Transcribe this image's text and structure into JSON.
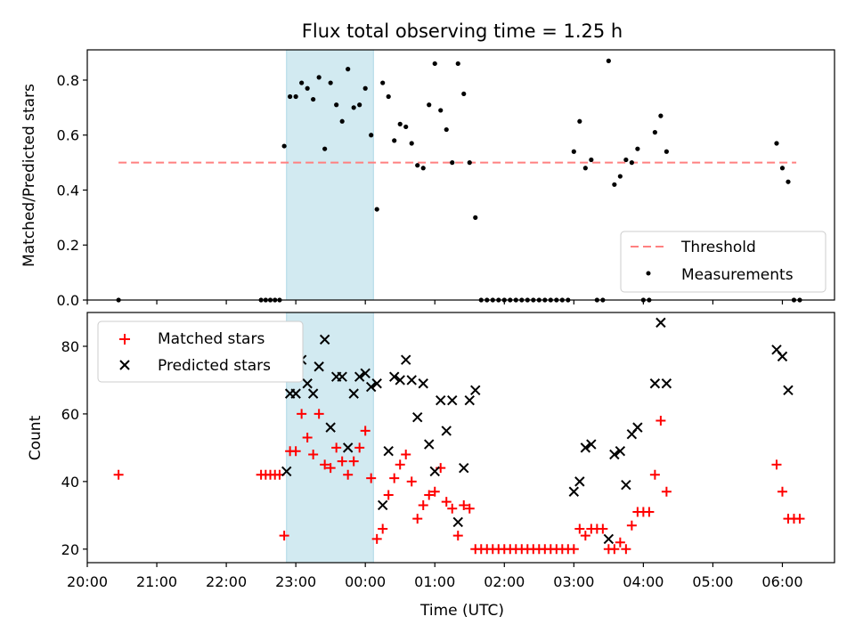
{
  "figure_title": "Flux total observing time = 1.25 h",
  "colors": {
    "threshold": "#ff8080",
    "measurements": "#000000",
    "matched": "#ff0000",
    "predicted": "#000000",
    "shade": "#add8e6"
  },
  "chart_data": [
    {
      "type": "scatter",
      "title": "Flux total observing time = 1.25 h",
      "xlabel": "",
      "ylabel": "Matched/Predicted stars",
      "x_axis": "time",
      "xlim": [
        "20:00",
        "06:45"
      ],
      "ylim": [
        0,
        0.91
      ],
      "yticks": [
        0.0,
        0.2,
        0.4,
        0.6,
        0.8
      ],
      "ytick_labels": [
        "0.0",
        "0.2",
        "0.4",
        "0.6",
        "0.8"
      ],
      "shaded_span": [
        "22:52",
        "00:07"
      ],
      "legend": {
        "position": "lower-right",
        "entries": [
          "Threshold",
          "Measurements"
        ]
      },
      "series": [
        {
          "name": "Threshold",
          "style": "dashed-line",
          "points": [
            [
              "20:27",
              0.5
            ],
            [
              "06:12",
              0.5
            ]
          ]
        },
        {
          "name": "Measurements",
          "style": "dot",
          "points": [
            [
              "20:27",
              0.0
            ],
            [
              "22:30",
              0.0
            ],
            [
              "22:34",
              0.0
            ],
            [
              "22:38",
              0.0
            ],
            [
              "22:42",
              0.0
            ],
            [
              "22:46",
              0.0
            ],
            [
              "22:50",
              0.56
            ],
            [
              "22:55",
              0.74
            ],
            [
              "23:00",
              0.74
            ],
            [
              "23:05",
              0.79
            ],
            [
              "23:10",
              0.77
            ],
            [
              "23:15",
              0.73
            ],
            [
              "23:20",
              0.81
            ],
            [
              "23:25",
              0.55
            ],
            [
              "23:30",
              0.79
            ],
            [
              "23:35",
              0.71
            ],
            [
              "23:40",
              0.65
            ],
            [
              "23:45",
              0.84
            ],
            [
              "23:50",
              0.7
            ],
            [
              "23:55",
              0.71
            ],
            [
              "00:00",
              0.77
            ],
            [
              "00:05",
              0.6
            ],
            [
              "00:10",
              0.33
            ],
            [
              "00:15",
              0.79
            ],
            [
              "00:20",
              0.74
            ],
            [
              "00:25",
              0.58
            ],
            [
              "00:30",
              0.64
            ],
            [
              "00:35",
              0.63
            ],
            [
              "00:40",
              0.57
            ],
            [
              "00:45",
              0.49
            ],
            [
              "00:50",
              0.48
            ],
            [
              "00:55",
              0.71
            ],
            [
              "01:00",
              0.86
            ],
            [
              "01:05",
              0.69
            ],
            [
              "01:10",
              0.62
            ],
            [
              "01:15",
              0.5
            ],
            [
              "01:20",
              0.86
            ],
            [
              "01:25",
              0.75
            ],
            [
              "01:30",
              0.5
            ],
            [
              "01:35",
              0.3
            ],
            [
              "01:40",
              0.0
            ],
            [
              "01:45",
              0.0
            ],
            [
              "01:50",
              0.0
            ],
            [
              "01:55",
              0.0
            ],
            [
              "02:00",
              0.0
            ],
            [
              "02:05",
              0.0
            ],
            [
              "02:10",
              0.0
            ],
            [
              "02:15",
              0.0
            ],
            [
              "02:20",
              0.0
            ],
            [
              "02:25",
              0.0
            ],
            [
              "02:30",
              0.0
            ],
            [
              "02:35",
              0.0
            ],
            [
              "02:40",
              0.0
            ],
            [
              "02:45",
              0.0
            ],
            [
              "02:50",
              0.0
            ],
            [
              "02:55",
              0.0
            ],
            [
              "03:00",
              0.54
            ],
            [
              "03:05",
              0.65
            ],
            [
              "03:10",
              0.48
            ],
            [
              "03:15",
              0.51
            ],
            [
              "03:20",
              0.0
            ],
            [
              "03:25",
              0.0
            ],
            [
              "03:30",
              0.87
            ],
            [
              "03:35",
              0.42
            ],
            [
              "03:40",
              0.45
            ],
            [
              "03:45",
              0.51
            ],
            [
              "03:50",
              0.5
            ],
            [
              "03:55",
              0.55
            ],
            [
              "04:00",
              0.0
            ],
            [
              "04:05",
              0.0
            ],
            [
              "04:10",
              0.61
            ],
            [
              "04:15",
              0.67
            ],
            [
              "04:20",
              0.54
            ],
            [
              "05:55",
              0.57
            ],
            [
              "06:00",
              0.48
            ],
            [
              "06:05",
              0.43
            ],
            [
              "06:10",
              0.0
            ],
            [
              "06:15",
              0.0
            ]
          ]
        }
      ]
    },
    {
      "type": "scatter",
      "title": "",
      "xlabel": "Time (UTC)",
      "ylabel": "Count",
      "x_axis": "time",
      "xlim": [
        "20:00",
        "06:45"
      ],
      "ylim": [
        16,
        90
      ],
      "yticks": [
        20,
        40,
        60,
        80
      ],
      "ytick_labels": [
        "20",
        "40",
        "60",
        "80"
      ],
      "xticks": [
        "20:00",
        "21:00",
        "22:00",
        "23:00",
        "00:00",
        "01:00",
        "02:00",
        "03:00",
        "04:00",
        "05:00",
        "06:00"
      ],
      "shaded_span": [
        "22:52",
        "00:07"
      ],
      "legend": {
        "position": "upper-left",
        "entries": [
          "Matched stars",
          "Predicted stars"
        ]
      },
      "series": [
        {
          "name": "Matched stars",
          "style": "plus",
          "points": [
            [
              "20:27",
              42
            ],
            [
              "22:30",
              42
            ],
            [
              "22:34",
              42
            ],
            [
              "22:38",
              42
            ],
            [
              "22:42",
              42
            ],
            [
              "22:46",
              42
            ],
            [
              "22:50",
              24
            ],
            [
              "22:55",
              49
            ],
            [
              "23:00",
              49
            ],
            [
              "23:05",
              60
            ],
            [
              "23:10",
              53
            ],
            [
              "23:15",
              48
            ],
            [
              "23:20",
              60
            ],
            [
              "23:25",
              45
            ],
            [
              "23:30",
              44
            ],
            [
              "23:35",
              50
            ],
            [
              "23:40",
              46
            ],
            [
              "23:45",
              42
            ],
            [
              "23:50",
              46
            ],
            [
              "23:55",
              50
            ],
            [
              "00:00",
              55
            ],
            [
              "00:05",
              41
            ],
            [
              "00:10",
              23
            ],
            [
              "00:15",
              26
            ],
            [
              "00:20",
              36
            ],
            [
              "00:25",
              41
            ],
            [
              "00:30",
              45
            ],
            [
              "00:35",
              48
            ],
            [
              "00:40",
              40
            ],
            [
              "00:45",
              29
            ],
            [
              "00:50",
              33
            ],
            [
              "00:55",
              36
            ],
            [
              "01:00",
              37
            ],
            [
              "01:05",
              44
            ],
            [
              "01:10",
              34
            ],
            [
              "01:15",
              32
            ],
            [
              "01:20",
              24
            ],
            [
              "01:25",
              33
            ],
            [
              "01:30",
              32
            ],
            [
              "01:35",
              20
            ],
            [
              "01:40",
              20
            ],
            [
              "01:45",
              20
            ],
            [
              "01:50",
              20
            ],
            [
              "01:55",
              20
            ],
            [
              "02:00",
              20
            ],
            [
              "02:05",
              20
            ],
            [
              "02:10",
              20
            ],
            [
              "02:15",
              20
            ],
            [
              "02:20",
              20
            ],
            [
              "02:25",
              20
            ],
            [
              "02:30",
              20
            ],
            [
              "02:35",
              20
            ],
            [
              "02:40",
              20
            ],
            [
              "02:45",
              20
            ],
            [
              "02:50",
              20
            ],
            [
              "02:55",
              20
            ],
            [
              "03:00",
              20
            ],
            [
              "03:05",
              26
            ],
            [
              "03:10",
              24
            ],
            [
              "03:15",
              26
            ],
            [
              "03:20",
              26
            ],
            [
              "03:25",
              26
            ],
            [
              "03:30",
              20
            ],
            [
              "03:35",
              20
            ],
            [
              "03:40",
              22
            ],
            [
              "03:45",
              20
            ],
            [
              "03:50",
              27
            ],
            [
              "03:55",
              31
            ],
            [
              "04:00",
              31
            ],
            [
              "04:05",
              31
            ],
            [
              "04:10",
              42
            ],
            [
              "04:15",
              58
            ],
            [
              "04:20",
              37
            ],
            [
              "05:55",
              45
            ],
            [
              "06:00",
              37
            ],
            [
              "06:05",
              29
            ],
            [
              "06:10",
              29
            ],
            [
              "06:15",
              29
            ]
          ]
        },
        {
          "name": "Predicted stars",
          "style": "cross",
          "points": [
            [
              "22:52",
              43
            ],
            [
              "22:55",
              66
            ],
            [
              "23:00",
              66
            ],
            [
              "23:05",
              76
            ],
            [
              "23:10",
              69
            ],
            [
              "23:15",
              66
            ],
            [
              "23:20",
              74
            ],
            [
              "23:25",
              82
            ],
            [
              "23:30",
              56
            ],
            [
              "23:35",
              71
            ],
            [
              "23:40",
              71
            ],
            [
              "23:45",
              50
            ],
            [
              "23:50",
              66
            ],
            [
              "23:55",
              71
            ],
            [
              "00:00",
              72
            ],
            [
              "00:05",
              68
            ],
            [
              "00:10",
              69
            ],
            [
              "00:15",
              33
            ],
            [
              "00:20",
              49
            ],
            [
              "00:25",
              71
            ],
            [
              "00:30",
              70
            ],
            [
              "00:35",
              76
            ],
            [
              "00:40",
              70
            ],
            [
              "00:45",
              59
            ],
            [
              "00:50",
              69
            ],
            [
              "00:55",
              51
            ],
            [
              "01:00",
              43
            ],
            [
              "01:05",
              64
            ],
            [
              "01:10",
              55
            ],
            [
              "01:15",
              64
            ],
            [
              "01:20",
              28
            ],
            [
              "01:25",
              44
            ],
            [
              "01:30",
              64
            ],
            [
              "01:35",
              67
            ],
            [
              "03:00",
              37
            ],
            [
              "03:05",
              40
            ],
            [
              "03:10",
              50
            ],
            [
              "03:15",
              51
            ],
            [
              "03:30",
              23
            ],
            [
              "03:35",
              48
            ],
            [
              "03:40",
              49
            ],
            [
              "03:45",
              39
            ],
            [
              "03:50",
              54
            ],
            [
              "03:55",
              56
            ],
            [
              "04:10",
              69
            ],
            [
              "04:15",
              87
            ],
            [
              "04:20",
              69
            ],
            [
              "05:55",
              79
            ],
            [
              "06:00",
              77
            ],
            [
              "06:05",
              67
            ]
          ]
        }
      ]
    }
  ]
}
